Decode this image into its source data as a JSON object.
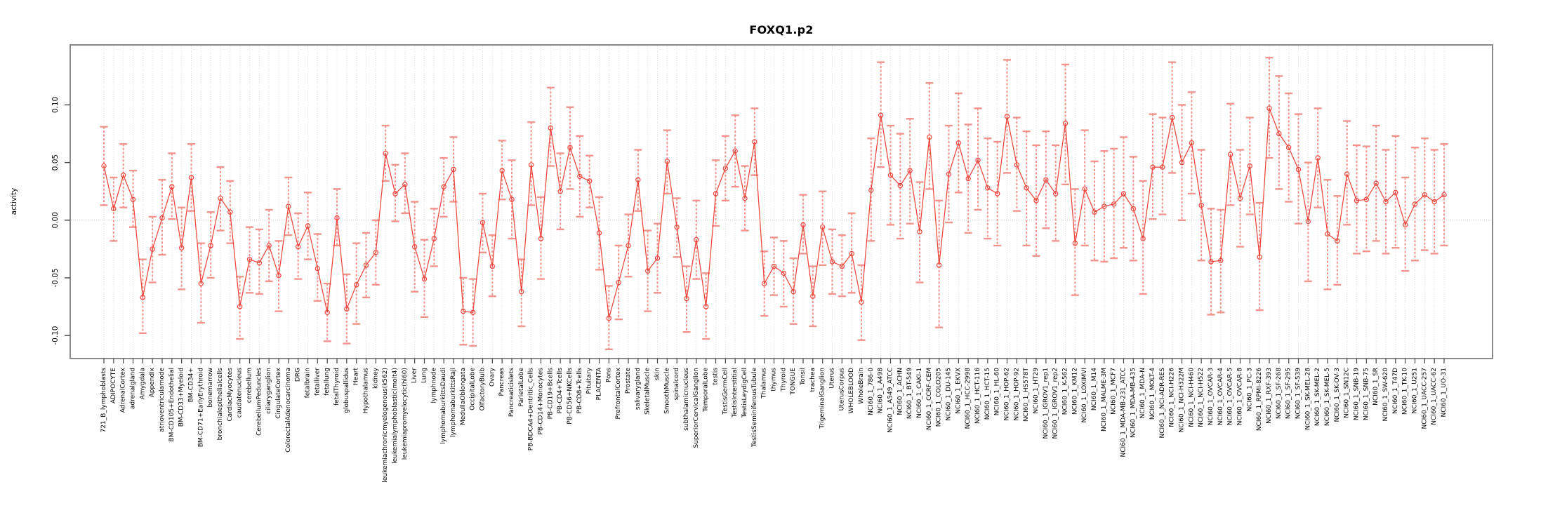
{
  "header": {
    "title": "FOXQ1.p2"
  },
  "chart_data": {
    "type": "line",
    "title": "FOXQ1.p2",
    "xlabel": "",
    "ylabel": "activity",
    "ylim": [
      -0.12,
      0.152
    ],
    "ytick_values": [
      0.1,
      0.05,
      0.0,
      -0.05,
      -0.1
    ],
    "ytick_labels": [
      "0.10",
      "0.05",
      "0.00",
      "-0.05",
      "-0.10"
    ],
    "grid": "vertical dotted gridline per category, dotted horizontal line at 0",
    "legend": "none",
    "marker": "open-circle",
    "error_bars": true,
    "colors": {
      "series": "#ee453b",
      "errorbar": "#f2948d",
      "grid": "#dcdcdc",
      "zero_line": "#c8c8c8",
      "border": "#8a8a8a",
      "text": "#000000"
    },
    "categories": [
      "721_B_lymphoblasts",
      "ADIPOCYTE",
      "AdrenalCortex",
      "adrenalgland",
      "Amygdala",
      "Appendix",
      "atrioventricularnode",
      "BM-CD105+Endothelial",
      "BM-CD33+Myeloid",
      "BM-CD34+",
      "BM-CD71+EarlyErythroid",
      "bonemarrow",
      "bronchialepithelialcells",
      "CardiacMyocytes",
      "caudatenucleus",
      "cerebellum",
      "CerebellumPeduncles",
      "ciliaryganglion",
      "CingulateCortex",
      "ColorectalAdenocarcinoma",
      "DRG",
      "fetalbrain",
      "fetalliver",
      "fetallung",
      "fetalThyroid",
      "globuspallidus",
      "Heart",
      "Hypothalamus",
      "kidney",
      "leukemiachronicmyelogenous(k562)",
      "leukemialymphoblastic(molt4)",
      "leukemiapromyelocytic(hl60)",
      "Liver",
      "Lung",
      "lymphnode",
      "lymphomaburkittsDaudi",
      "lymphomaburkittsRaji",
      "MedullaOblongata",
      "OccipitalLobe",
      "OlfactoryBulb",
      "Ovary",
      "Pancreas",
      "Pancreaticislets",
      "ParietalLobe",
      "PB-BDCA4+Dentritic_Cells",
      "PB-CD14+Monocytes",
      "PB-CD19+Bcells",
      "PB-CD4+Tcells",
      "PB-CD56+NKCells",
      "PB-CD8+Tcells",
      "Pituitary",
      "PLACENTA",
      "Pons",
      "PrefrontalCortex",
      "Prostate",
      "salivarygland",
      "SkeletalMuscle",
      "skin",
      "SmoothMuscle",
      "spinalcord",
      "subthalamicnucleus",
      "SuperiorCervicalGanglion",
      "TemporalLobe",
      "testis",
      "TestisGermCell",
      "TestisInterstitial",
      "TestisLeydigCell",
      "TestisSeminiferousTubule",
      "Thalamus",
      "thymus",
      "Thyroid",
      "TONGUE",
      "Tonsil",
      "trachea",
      "TrigeminalGanglion",
      "Uterus",
      "UterusCorpus",
      "WHOLEBLOOD",
      "WholeBrain",
      "NCI60_1_786-0",
      "NCI60_1_A498",
      "NCI60_1_A549_ATCC",
      "NCI60_1_ACHN",
      "NCI60_1_BT-549",
      "NCI60_1_CAKI-1",
      "NCI60_1_CCRF-CEM",
      "NCI60_1_COLO205",
      "NCI60_1_DU-145",
      "NCI60_1_EKVX",
      "NCI60_1_HCC-2998",
      "NCI60_1_HCT-116",
      "NCI60_1_HCT-15",
      "NCI60_1_HL-60",
      "NCI60_1_HOP-62",
      "NCI60_1_HOP-92",
      "NCI60_1_HS578T",
      "NCI60_1_HT29",
      "NCI60_1_IGROV1_rep1",
      "NCI60_1_IGROV1_rep2",
      "NCI60_1_K-562",
      "NCI60_1_KM12",
      "NCI60_1_LOXIMVI",
      "NCI60_1_M14",
      "NCI60_1_MALME-3M",
      "NCI60_1_MCF7",
      "NCI60_1_MDA-MB-231_ATCC",
      "NCI60_1_MDA-MB-435",
      "NCI60_1_MDA-N",
      "NCI60_1_MOLT-4",
      "NCI60_1_NCI-ADR-RES",
      "NCI60_1_NCI-H226",
      "NCI60_1_NCI-H322M",
      "NCI60_1_NCI-H460",
      "NCI60_1_NCI-H522",
      "NCI60_1_OVCAR-3",
      "NCI60_1_OVCAR-4",
      "NCI60_1_OVCAR-5",
      "NCI60_1_OVCAR-8",
      "NCI60_1_PC-3",
      "NCI60_1_RPMI-8226",
      "NCI60_1_RXF-393",
      "NCI60_1_SF-268",
      "NCI60_1_SF-295",
      "NCI60_1_SF-539",
      "NCI60_1_SK-MEL-28",
      "NCI60_1_SK-MEL-2",
      "NCI60_1_SK-MEL-5",
      "NCI60_1_SK-OV-3",
      "NCI60_1_SN12C",
      "NCI60_1_SNB-19",
      "NCI60_1_SNB-75",
      "NCI60_1_SR",
      "NCI60_1_SW-620",
      "NCI60_1_T47D",
      "NCI60_1_TK-10",
      "NCI60_1_U251",
      "NCI60_1_UACC-257",
      "NCI60_1_UACC-62",
      "NCI60_1_UO-31"
    ],
    "values": [
      0.047,
      0.01,
      0.039,
      0.018,
      -0.067,
      -0.025,
      0.002,
      0.029,
      -0.024,
      0.037,
      -0.055,
      -0.022,
      0.019,
      0.007,
      -0.075,
      -0.034,
      -0.037,
      -0.022,
      -0.048,
      0.012,
      -0.023,
      -0.005,
      -0.042,
      -0.08,
      0.002,
      -0.077,
      -0.056,
      -0.039,
      -0.028,
      0.058,
      0.023,
      0.031,
      -0.023,
      -0.051,
      -0.016,
      0.029,
      0.044,
      -0.079,
      -0.08,
      -0.002,
      -0.04,
      0.043,
      0.018,
      -0.062,
      0.048,
      -0.016,
      0.08,
      0.025,
      0.063,
      0.038,
      0.034,
      -0.011,
      -0.085,
      -0.054,
      -0.022,
      0.035,
      -0.044,
      -0.033,
      0.051,
      -0.006,
      -0.068,
      -0.017,
      -0.075,
      0.023,
      0.045,
      0.06,
      0.019,
      0.068,
      -0.055,
      -0.04,
      -0.046,
      -0.062,
      -0.004,
      -0.066,
      -0.006,
      -0.036,
      -0.04,
      -0.029,
      -0.071,
      0.026,
      0.091,
      0.039,
      0.03,
      0.043,
      -0.01,
      0.072,
      -0.039,
      0.04,
      0.067,
      0.036,
      0.052,
      0.028,
      0.023,
      0.09,
      0.048,
      0.028,
      0.017,
      0.035,
      0.023,
      0.084,
      -0.02,
      0.027,
      0.007,
      0.012,
      0.014,
      0.023,
      0.01,
      -0.016,
      0.046,
      0.046,
      0.089,
      0.05,
      0.067,
      0.013,
      -0.036,
      -0.035,
      0.057,
      0.019,
      0.047,
      -0.032,
      0.097,
      0.075,
      0.063,
      0.044,
      -0.001,
      0.054,
      -0.012,
      -0.018,
      0.04,
      0.017,
      0.018,
      0.032,
      0.016,
      0.024,
      -0.004,
      0.014,
      0.022,
      0.016,
      0.022
    ],
    "error_low": [
      0.013,
      -0.018,
      0.011,
      -0.006,
      -0.098,
      -0.054,
      -0.03,
      0.001,
      -0.06,
      0.008,
      -0.089,
      -0.05,
      -0.009,
      -0.02,
      -0.103,
      -0.063,
      -0.064,
      -0.053,
      -0.079,
      -0.013,
      -0.051,
      -0.034,
      -0.07,
      -0.105,
      -0.022,
      -0.107,
      -0.09,
      -0.067,
      -0.056,
      0.034,
      -0.001,
      0.006,
      -0.062,
      -0.084,
      -0.04,
      0.003,
      0.016,
      -0.108,
      -0.109,
      -0.028,
      -0.066,
      0.018,
      -0.016,
      -0.092,
      0.013,
      -0.051,
      0.047,
      -0.008,
      0.027,
      0.003,
      0.011,
      -0.043,
      -0.112,
      -0.086,
      -0.049,
      0.008,
      -0.079,
      -0.063,
      0.023,
      -0.032,
      -0.097,
      -0.051,
      -0.103,
      -0.005,
      0.017,
      0.029,
      -0.009,
      0.039,
      -0.083,
      -0.065,
      -0.075,
      -0.09,
      -0.029,
      -0.092,
      -0.039,
      -0.064,
      -0.066,
      -0.063,
      -0.104,
      -0.018,
      0.046,
      -0.004,
      -0.016,
      -0.003,
      -0.054,
      0.027,
      -0.093,
      -0.002,
      0.024,
      -0.011,
      0.009,
      -0.016,
      -0.022,
      0.041,
      0.008,
      -0.022,
      -0.031,
      -0.007,
      -0.018,
      0.031,
      -0.065,
      -0.022,
      -0.035,
      -0.036,
      -0.033,
      -0.024,
      -0.035,
      -0.064,
      0.001,
      0.005,
      0.041,
      0.0,
      0.023,
      -0.035,
      -0.082,
      -0.08,
      0.013,
      -0.023,
      0.005,
      -0.078,
      0.054,
      0.027,
      0.016,
      -0.003,
      -0.053,
      0.011,
      -0.06,
      -0.056,
      -0.004,
      -0.029,
      -0.027,
      -0.018,
      -0.029,
      -0.024,
      -0.044,
      -0.035,
      -0.026,
      -0.029,
      -0.022
    ],
    "error_high": [
      0.081,
      0.037,
      0.066,
      0.043,
      -0.034,
      0.003,
      0.035,
      0.058,
      0.011,
      0.066,
      -0.02,
      0.007,
      0.046,
      0.034,
      -0.049,
      -0.006,
      -0.008,
      0.009,
      -0.018,
      0.037,
      0.006,
      0.024,
      -0.012,
      -0.055,
      0.027,
      -0.047,
      -0.02,
      -0.011,
      0.0,
      0.082,
      0.048,
      0.058,
      0.016,
      -0.017,
      0.01,
      0.054,
      0.072,
      -0.05,
      -0.051,
      0.023,
      -0.013,
      0.069,
      0.052,
      -0.034,
      0.085,
      0.02,
      0.115,
      0.058,
      0.098,
      0.073,
      0.056,
      0.02,
      -0.057,
      -0.022,
      0.005,
      0.061,
      -0.009,
      -0.003,
      0.078,
      0.019,
      -0.04,
      0.017,
      -0.046,
      0.052,
      0.073,
      0.091,
      0.047,
      0.097,
      -0.027,
      -0.015,
      -0.018,
      -0.033,
      0.022,
      -0.04,
      0.025,
      -0.008,
      -0.013,
      0.006,
      -0.039,
      0.071,
      0.137,
      0.082,
      0.075,
      0.088,
      0.033,
      0.119,
      0.017,
      0.082,
      0.11,
      0.083,
      0.097,
      0.071,
      0.068,
      0.139,
      0.089,
      0.077,
      0.065,
      0.077,
      0.065,
      0.135,
      0.027,
      0.078,
      0.051,
      0.06,
      0.062,
      0.072,
      0.055,
      0.034,
      0.092,
      0.089,
      0.137,
      0.1,
      0.111,
      0.061,
      0.01,
      0.009,
      0.101,
      0.061,
      0.089,
      0.015,
      0.141,
      0.125,
      0.11,
      0.092,
      0.05,
      0.097,
      0.035,
      0.021,
      0.086,
      0.065,
      0.064,
      0.082,
      0.061,
      0.073,
      0.037,
      0.063,
      0.071,
      0.061,
      0.066
    ]
  }
}
